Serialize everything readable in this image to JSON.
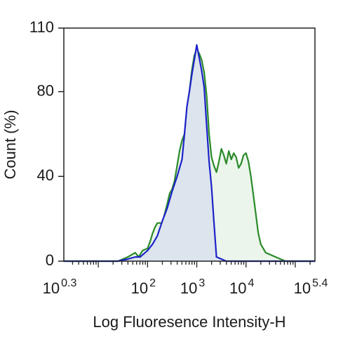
{
  "chart_data": {
    "type": "area",
    "xlabel": "Log Fluoresence Intensity-H",
    "ylabel": "Count  (%)",
    "x_scale": "log10",
    "xlim": [
      0.3,
      5.4
    ],
    "ylim": [
      0,
      110
    ],
    "y_ticks": [
      "0",
      "40",
      "80",
      "110"
    ],
    "x_tick_labels": [
      {
        "base": "10",
        "exp": "0.3",
        "log": 0.3
      },
      {
        "base": "10",
        "exp": "2",
        "log": 2
      },
      {
        "base": "10",
        "exp": "3",
        "log": 3
      },
      {
        "base": "10",
        "exp": "4",
        "log": 4
      },
      {
        "base": "10",
        "exp": "5.4",
        "log": 5.4
      }
    ],
    "grid": false,
    "series": [
      {
        "stroke": "#2a8a2a",
        "fill": "#e8f3e8",
        "log_x": [
          0.3,
          1.0,
          1.4,
          1.6,
          1.75,
          1.82,
          1.9,
          2.0,
          2.05,
          2.1,
          2.15,
          2.2,
          2.3,
          2.4,
          2.45,
          2.5,
          2.55,
          2.6,
          2.65,
          2.7,
          2.75,
          2.8,
          2.85,
          2.9,
          2.95,
          3.0,
          3.05,
          3.1,
          3.15,
          3.2,
          3.25,
          3.3,
          3.35,
          3.4,
          3.45,
          3.5,
          3.55,
          3.6,
          3.65,
          3.7,
          3.75,
          3.8,
          3.85,
          3.9,
          3.95,
          4.0,
          4.05,
          4.1,
          4.15,
          4.2,
          4.25,
          4.3,
          4.4,
          4.6,
          4.8,
          5.4
        ],
        "y": [
          0,
          0,
          0,
          2,
          4,
          2,
          5,
          6,
          9,
          13,
          16,
          18,
          18,
          27,
          32,
          34,
          38,
          45,
          52,
          57,
          60,
          72,
          80,
          90,
          97,
          100,
          98,
          95,
          89,
          78,
          60,
          49,
          45,
          42,
          47,
          53,
          50,
          46,
          52,
          48,
          51,
          49,
          44,
          46,
          50,
          51,
          47,
          40,
          31,
          22,
          13,
          8,
          4,
          2,
          0,
          0
        ]
      },
      {
        "stroke": "#1c22c8",
        "fill": "#d9e0ee",
        "log_x": [
          0.3,
          1.0,
          1.4,
          1.6,
          1.75,
          1.85,
          1.9,
          2.0,
          2.1,
          2.15,
          2.2,
          2.3,
          2.4,
          2.5,
          2.6,
          2.7,
          2.75,
          2.8,
          2.85,
          2.9,
          2.95,
          3.0,
          3.05,
          3.1,
          3.15,
          3.2,
          3.25,
          3.3,
          3.35,
          3.4,
          3.6,
          5.4
        ],
        "y": [
          0,
          0,
          0,
          1,
          2,
          2,
          3,
          5,
          8,
          10,
          12,
          19,
          25,
          33,
          40,
          48,
          60,
          73,
          80,
          88,
          95,
          102,
          96,
          90,
          82,
          64,
          47,
          35,
          18,
          2,
          0,
          0
        ]
      }
    ]
  }
}
